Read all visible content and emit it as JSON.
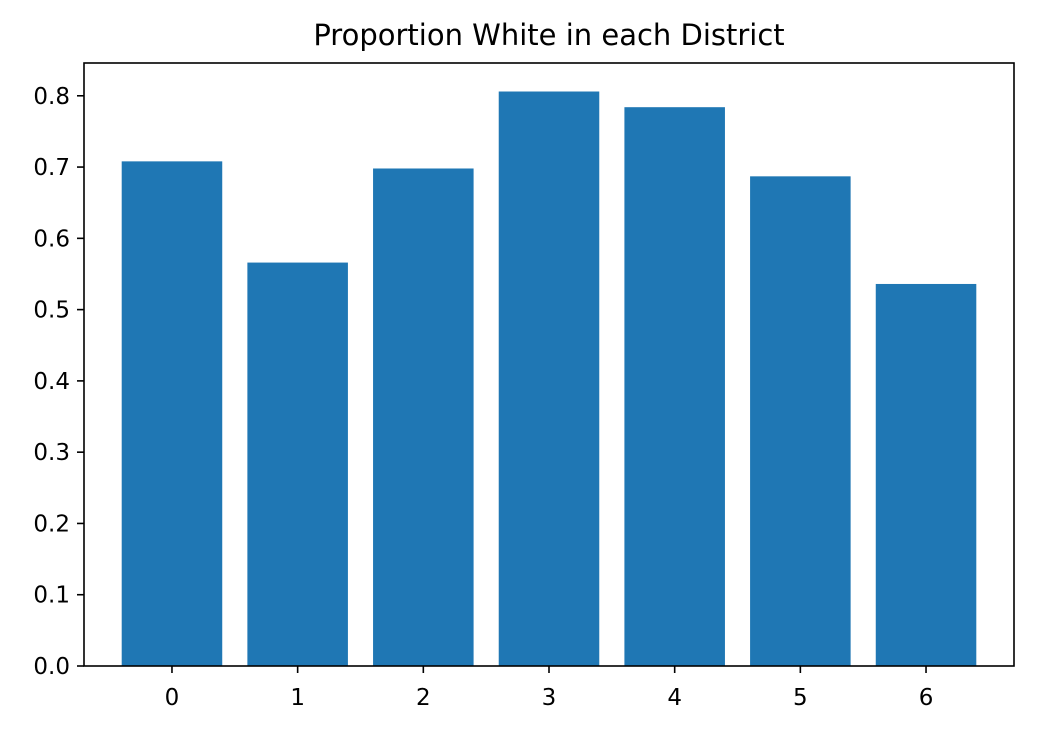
{
  "chart_data": {
    "type": "bar",
    "title": "Proportion White in each District",
    "xlabel": "",
    "ylabel": "",
    "categories": [
      "0",
      "1",
      "2",
      "3",
      "4",
      "5",
      "6"
    ],
    "values": [
      0.708,
      0.566,
      0.698,
      0.806,
      0.784,
      0.687,
      0.536
    ],
    "xlim": [
      -0.7,
      6.7
    ],
    "ylim": [
      0,
      0.846
    ],
    "yticks": [
      0.0,
      0.1,
      0.2,
      0.3,
      0.4,
      0.5,
      0.6,
      0.7,
      0.8
    ],
    "ytick_labels": [
      "0.0",
      "0.1",
      "0.2",
      "0.3",
      "0.4",
      "0.5",
      "0.6",
      "0.7",
      "0.8"
    ],
    "bar_width": 0.8,
    "grid": false,
    "legend": "none",
    "colors": {
      "bar": "#1f77b4",
      "axes": "#000000",
      "background": "#ffffff"
    }
  }
}
